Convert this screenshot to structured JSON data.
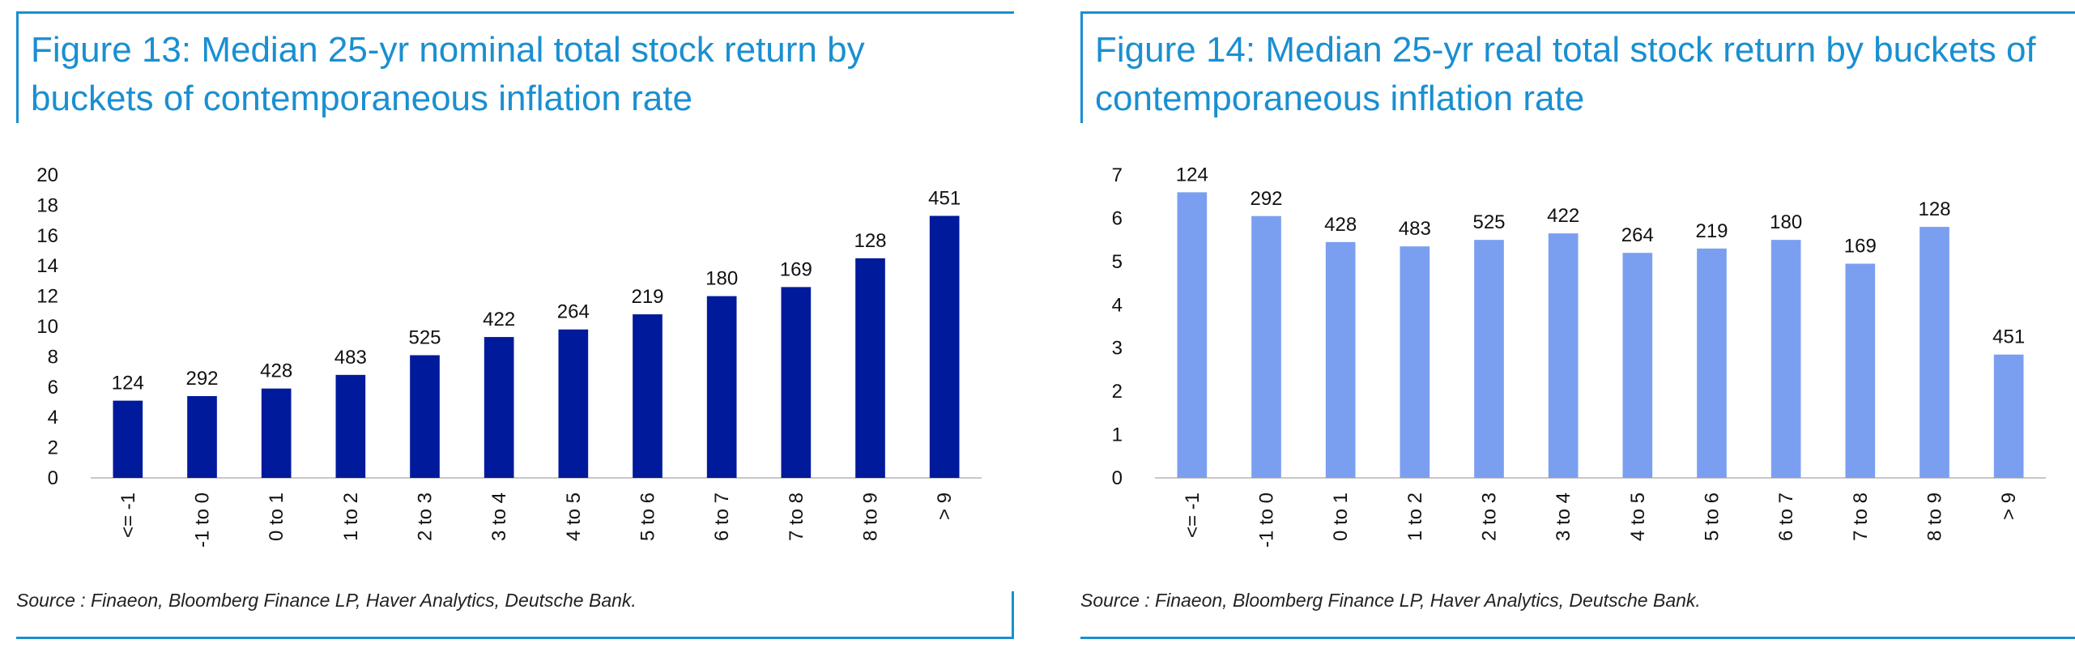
{
  "figures": [
    {
      "title": "Figure 13: Median 25-yr nominal total stock return by buckets of contemporaneous inflation rate",
      "source": "Source : Finaeon, Bloomberg Finance LP, Haver Analytics, Deutsche Bank."
    },
    {
      "title": "Figure 14: Median 25-yr real total stock return by buckets of contemporaneous inflation rate",
      "source": "Source : Finaeon, Bloomberg Finance LP, Haver Analytics, Deutsche Bank."
    }
  ],
  "colors": {
    "accent": "#1a8fd1",
    "nominal_bar": "#001a9c",
    "real_bar": "#7b9ff0",
    "axis": "#c8c8c8"
  },
  "chart_data": [
    {
      "type": "bar",
      "title": "Figure 13: Median 25-yr nominal total stock return by buckets of contemporaneous inflation rate",
      "categories": [
        "<= -1",
        "-1 to 0",
        "0 to 1",
        "1 to 2",
        "2 to 3",
        "3 to 4",
        "4 to 5",
        "5 to 6",
        "6 to 7",
        "7 to 8",
        "8 to 9",
        "> 9"
      ],
      "values": [
        5.1,
        5.4,
        5.9,
        6.8,
        8.1,
        9.3,
        9.8,
        10.8,
        12.0,
        12.6,
        14.5,
        17.3
      ],
      "data_labels": [
        "124",
        "292",
        "428",
        "483",
        "525",
        "422",
        "264",
        "219",
        "180",
        "169",
        "128",
        "451"
      ],
      "yticks": [
        "0",
        "2",
        "4",
        "6",
        "8",
        "10",
        "12",
        "14",
        "16",
        "18",
        "20"
      ],
      "ylim": [
        0,
        20
      ],
      "xlabel": "",
      "ylabel": "",
      "grid": false,
      "legend": "none",
      "color": "#001a9c"
    },
    {
      "type": "bar",
      "title": "Figure 14: Median 25-yr real total stock return by buckets of contemporaneous inflation rate",
      "categories": [
        "<= -1",
        "-1 to 0",
        "0 to 1",
        "1 to 2",
        "2 to 3",
        "3 to 4",
        "4 to 5",
        "5 to 6",
        "6 to 7",
        "7 to 8",
        "8 to 9",
        "> 9"
      ],
      "values": [
        6.6,
        6.05,
        5.45,
        5.35,
        5.5,
        5.65,
        5.2,
        5.3,
        5.5,
        4.95,
        5.8,
        2.85
      ],
      "data_labels": [
        "124",
        "292",
        "428",
        "483",
        "525",
        "422",
        "264",
        "219",
        "180",
        "169",
        "128",
        "451"
      ],
      "yticks": [
        "0",
        "1",
        "2",
        "3",
        "4",
        "5",
        "6",
        "7"
      ],
      "ylim": [
        0,
        7
      ],
      "xlabel": "",
      "ylabel": "",
      "grid": false,
      "legend": "none",
      "color": "#7b9ff0"
    }
  ]
}
